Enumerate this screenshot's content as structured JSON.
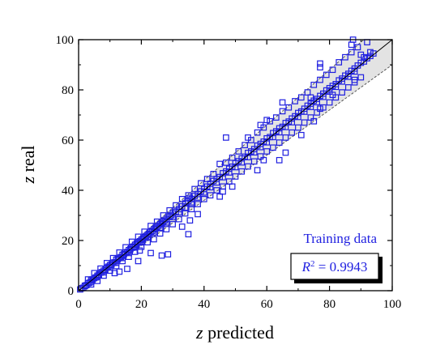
{
  "chart_data": {
    "type": "scatter",
    "xlabel": {
      "italic": "z",
      "rest": " predicted"
    },
    "ylabel": {
      "italic": "z",
      "rest": " real"
    },
    "xlim": [
      0,
      100
    ],
    "ylim": [
      0,
      100
    ],
    "xticks": [
      "0",
      "20",
      "40",
      "60",
      "80",
      "100"
    ],
    "yticks": [
      "0",
      "20",
      "40",
      "60",
      "80",
      "100"
    ],
    "grid": false,
    "identity_line": {
      "from": [
        0,
        0
      ],
      "to": [
        100,
        100
      ]
    },
    "band": {
      "upper_slope": 1.1,
      "lower_slope": 0.9
    },
    "annotations": {
      "dataset": "Training data",
      "r2_label": "R",
      "r2_sup": "2",
      "r2_value": " = 0.9943"
    },
    "colors": {
      "marker": "#1f1fe0",
      "band": "#e3e3e3",
      "text": "#1f1fe0"
    },
    "series": [
      {
        "marker": "open-square",
        "points": [
          [
            0.5,
            0.5
          ],
          [
            1,
            1
          ],
          [
            1.5,
            1.2
          ],
          [
            2,
            2
          ],
          [
            2.5,
            2.2
          ],
          [
            3,
            3
          ],
          [
            3.5,
            3.2
          ],
          [
            4,
            4.2
          ],
          [
            4.5,
            4.5
          ],
          [
            5,
            5
          ],
          [
            5.5,
            5.3
          ],
          [
            6,
            6
          ],
          [
            6.5,
            6.4
          ],
          [
            7,
            7.2
          ],
          [
            7.5,
            7.4
          ],
          [
            8,
            8
          ],
          [
            8.5,
            8.3
          ],
          [
            9,
            9.2
          ],
          [
            9.5,
            9.6
          ],
          [
            10,
            10.2
          ],
          [
            10.5,
            10.4
          ],
          [
            11,
            11.2
          ],
          [
            11.5,
            11.3
          ],
          [
            12,
            12.4
          ],
          [
            12.5,
            12.6
          ],
          [
            13,
            13.1
          ],
          [
            13.5,
            13.4
          ],
          [
            14,
            14.3
          ],
          [
            14.5,
            14.6
          ],
          [
            15,
            15.2
          ],
          [
            15.5,
            15.4
          ],
          [
            16,
            16.2
          ],
          [
            16.5,
            16.5
          ],
          [
            17,
            17.1
          ],
          [
            17.5,
            17.6
          ],
          [
            18,
            18.3
          ],
          [
            18.5,
            18.7
          ],
          [
            19,
            19.2
          ],
          [
            19.5,
            19.7
          ],
          [
            20,
            20.3
          ],
          [
            20.5,
            20.6
          ],
          [
            21,
            21.1
          ],
          [
            21.5,
            21.8
          ],
          [
            22,
            22.3
          ],
          [
            22.5,
            22.7
          ],
          [
            23,
            23.4
          ],
          [
            23.5,
            23.8
          ],
          [
            24,
            24.5
          ],
          [
            24.5,
            24.8
          ],
          [
            25,
            25.4
          ],
          [
            25.5,
            25.9
          ],
          [
            26,
            26.5
          ],
          [
            26.5,
            26.9
          ],
          [
            27,
            27.5
          ],
          [
            27.5,
            28
          ],
          [
            28,
            28.6
          ],
          [
            29,
            29.5
          ],
          [
            29.5,
            30
          ],
          [
            30,
            30.8
          ],
          [
            31,
            31.4
          ],
          [
            32,
            32.5
          ],
          [
            33,
            33.6
          ],
          [
            34,
            34.8
          ],
          [
            35,
            35.7
          ],
          [
            35.5,
            37
          ],
          [
            36,
            36.5
          ],
          [
            37,
            37.8
          ],
          [
            38,
            38.5
          ],
          [
            39,
            39.6
          ],
          [
            40,
            40.5
          ],
          [
            41,
            41.5
          ],
          [
            42,
            42.6
          ],
          [
            43,
            43.7
          ],
          [
            44,
            44.5
          ],
          [
            45,
            45.3
          ],
          [
            46,
            46.8
          ],
          [
            47,
            47.5
          ],
          [
            48,
            48.6
          ],
          [
            49,
            49.4
          ],
          [
            50,
            50.8
          ],
          [
            51,
            51.6
          ],
          [
            52,
            52.7
          ],
          [
            53,
            53.4
          ],
          [
            54,
            54.9
          ],
          [
            55,
            55.5
          ],
          [
            56,
            56.4
          ],
          [
            57,
            57.8
          ],
          [
            58,
            58.5
          ],
          [
            59,
            59.4
          ],
          [
            60,
            60.7
          ],
          [
            61,
            61.2
          ],
          [
            62,
            62.8
          ],
          [
            63,
            63.5
          ],
          [
            64,
            64.7
          ],
          [
            65,
            65.3
          ],
          [
            66,
            66.8
          ],
          [
            67,
            67.4
          ],
          [
            68,
            68.6
          ],
          [
            69,
            69.5
          ],
          [
            70,
            70.8
          ],
          [
            71,
            71.4
          ],
          [
            72,
            72.5
          ],
          [
            73,
            73.7
          ],
          [
            74,
            74.5
          ],
          [
            75,
            75.7
          ],
          [
            76,
            76.4
          ],
          [
            77,
            77.6
          ],
          [
            78,
            78.5
          ],
          [
            79,
            79.8
          ],
          [
            80,
            80.7
          ],
          [
            81,
            81.6
          ],
          [
            82,
            82.3
          ],
          [
            83,
            83.8
          ],
          [
            84,
            84.5
          ],
          [
            85,
            85.7
          ],
          [
            86,
            86.4
          ],
          [
            87,
            87.6
          ],
          [
            88,
            88.5
          ],
          [
            89,
            89.7
          ],
          [
            90,
            90.8
          ],
          [
            91,
            91.3
          ],
          [
            92,
            92.6
          ],
          [
            93,
            93.5
          ],
          [
            94,
            94.5
          ],
          [
            2,
            1.8
          ],
          [
            4,
            3.6
          ],
          [
            6,
            5.5
          ],
          [
            8,
            7.3
          ],
          [
            10,
            9.2
          ],
          [
            12,
            11.1
          ],
          [
            14,
            13
          ],
          [
            16,
            15
          ],
          [
            18,
            17.2
          ],
          [
            20,
            19.2
          ],
          [
            22,
            21.2
          ],
          [
            24,
            23.2
          ],
          [
            26,
            25.1
          ],
          [
            28,
            27.2
          ],
          [
            30,
            29.3
          ],
          [
            32,
            31.2
          ],
          [
            34,
            33.1
          ],
          [
            36,
            35.2
          ],
          [
            38,
            37.1
          ],
          [
            40,
            39.1
          ],
          [
            42,
            41.2
          ],
          [
            44,
            43.1
          ],
          [
            46,
            45.2
          ],
          [
            48,
            47.1
          ],
          [
            50,
            49.2
          ],
          [
            52,
            51.1
          ],
          [
            54,
            53.2
          ],
          [
            56,
            55.1
          ],
          [
            58,
            57.2
          ],
          [
            60,
            59.1
          ],
          [
            62,
            61.2
          ],
          [
            64,
            63.1
          ],
          [
            66,
            65.2
          ],
          [
            68,
            67.1
          ],
          [
            70,
            69.2
          ],
          [
            72,
            71.3
          ],
          [
            74,
            73.2
          ],
          [
            76,
            75.1
          ],
          [
            78,
            77.2
          ],
          [
            80,
            79.3
          ],
          [
            82,
            81.2
          ],
          [
            84,
            83.3
          ],
          [
            86,
            85.2
          ],
          [
            88,
            87.3
          ],
          [
            3,
            4.5
          ],
          [
            5,
            7
          ],
          [
            7,
            8.8
          ],
          [
            9,
            11
          ],
          [
            11,
            13
          ],
          [
            13,
            15.2
          ],
          [
            15,
            17.3
          ],
          [
            17,
            19.5
          ],
          [
            19,
            21.5
          ],
          [
            21,
            23.5
          ],
          [
            23,
            25.8
          ],
          [
            25,
            27.5
          ],
          [
            27,
            30
          ],
          [
            29,
            32
          ],
          [
            31,
            34
          ],
          [
            33,
            36.5
          ],
          [
            35,
            38
          ],
          [
            37,
            40.5
          ],
          [
            39,
            42.8
          ],
          [
            41,
            44.5
          ],
          [
            43,
            46.5
          ],
          [
            45,
            50.5
          ],
          [
            47,
            51
          ],
          [
            49,
            53
          ],
          [
            51,
            55.5
          ],
          [
            53,
            58
          ],
          [
            55,
            60
          ],
          [
            57,
            63
          ],
          [
            59,
            65
          ],
          [
            61,
            67.5
          ],
          [
            63,
            69
          ],
          [
            65,
            71.5
          ],
          [
            67,
            73
          ],
          [
            69,
            75.5
          ],
          [
            71,
            77
          ],
          [
            73,
            79
          ],
          [
            75,
            82
          ],
          [
            77,
            84
          ],
          [
            79,
            86
          ],
          [
            81,
            88
          ],
          [
            83,
            91
          ],
          [
            85,
            93
          ],
          [
            87,
            95
          ],
          [
            89,
            97
          ],
          [
            4,
            2.5
          ],
          [
            6,
            3.9
          ],
          [
            8,
            6
          ],
          [
            10,
            8
          ],
          [
            12,
            9.8
          ],
          [
            14,
            11.8
          ],
          [
            16,
            13.5
          ],
          [
            18,
            15.5
          ],
          [
            20,
            17.5
          ],
          [
            22,
            19.3
          ],
          [
            24,
            20.5
          ],
          [
            26,
            22.8
          ],
          [
            28,
            24.5
          ],
          [
            30,
            26.5
          ],
          [
            32,
            28.5
          ],
          [
            34,
            30.8
          ],
          [
            36,
            32.5
          ],
          [
            38,
            34.5
          ],
          [
            40,
            36.5
          ],
          [
            42,
            38
          ],
          [
            44,
            40
          ],
          [
            46,
            41.5
          ],
          [
            48,
            43.5
          ],
          [
            50,
            45.5
          ],
          [
            52,
            47.5
          ],
          [
            54,
            49.5
          ],
          [
            56,
            51.5
          ],
          [
            58,
            53.5
          ],
          [
            60,
            55.5
          ],
          [
            62,
            57
          ],
          [
            64,
            59
          ],
          [
            66,
            61
          ],
          [
            68,
            63
          ],
          [
            70,
            65
          ],
          [
            72,
            67
          ],
          [
            74,
            69
          ],
          [
            76,
            71
          ],
          [
            78,
            73
          ],
          [
            80,
            75
          ],
          [
            82,
            77
          ],
          [
            84,
            79
          ],
          [
            86,
            81
          ],
          [
            88,
            83
          ],
          [
            90,
            85
          ],
          [
            11.5,
            7
          ],
          [
            13,
            7.6
          ],
          [
            15.5,
            8.7
          ],
          [
            19,
            11.8
          ],
          [
            19.5,
            16
          ],
          [
            23,
            15
          ],
          [
            26.5,
            14
          ],
          [
            28.5,
            14.5
          ],
          [
            35,
            22.5
          ],
          [
            33,
            25.5
          ],
          [
            35.5,
            28
          ],
          [
            38,
            30.5
          ],
          [
            45,
            37.5
          ],
          [
            46,
            39.5
          ],
          [
            49,
            41.5
          ],
          [
            57,
            48
          ],
          [
            59,
            52
          ],
          [
            64,
            52
          ],
          [
            66,
            55
          ],
          [
            71,
            62
          ],
          [
            75,
            67.5
          ],
          [
            77,
            72.5
          ],
          [
            81,
            78
          ],
          [
            88,
            84
          ],
          [
            36,
            34.5
          ],
          [
            47,
            61
          ],
          [
            54,
            61
          ],
          [
            58,
            66
          ],
          [
            60,
            68
          ],
          [
            65,
            75
          ],
          [
            74,
            77
          ],
          [
            77,
            89
          ],
          [
            77,
            90.5
          ],
          [
            87,
            98
          ],
          [
            87.5,
            100
          ],
          [
            90,
            94
          ],
          [
            91,
            93
          ],
          [
            92,
            99
          ],
          [
            93,
            95
          ]
        ]
      }
    ]
  }
}
